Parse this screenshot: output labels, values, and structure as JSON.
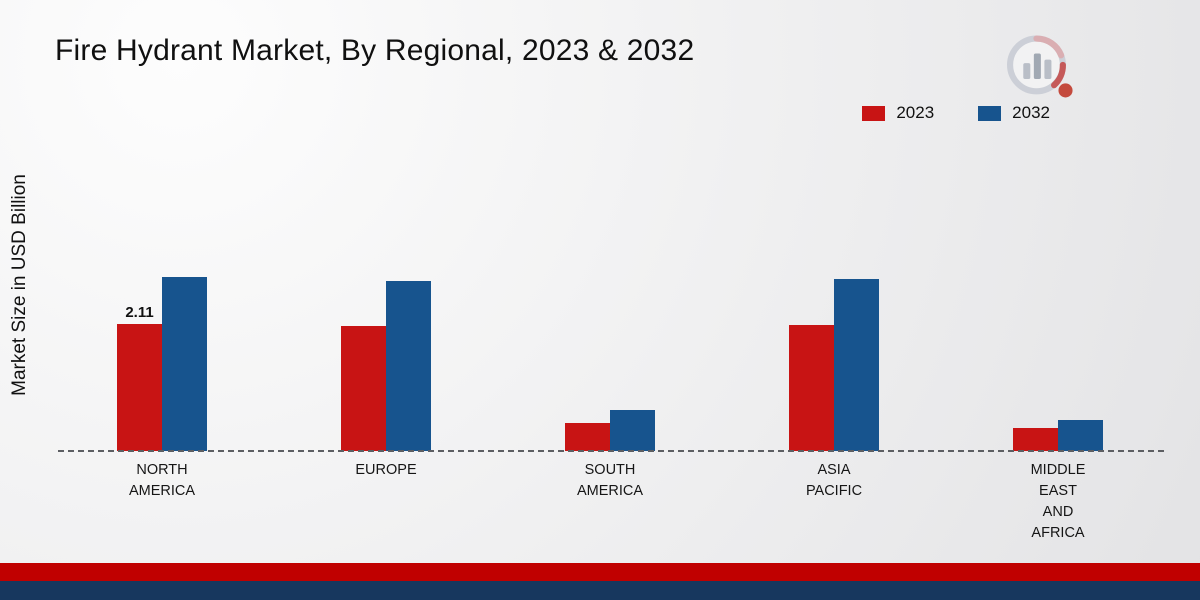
{
  "title": "Fire Hydrant Market, By Regional, 2023 & 2032",
  "y_axis_label": "Market Size in USD Billion",
  "chart_data": {
    "type": "bar",
    "title": "Fire Hydrant Market, By Regional, 2023 & 2032",
    "xlabel": "",
    "ylabel": "Market Size in USD Billion",
    "ylim": [
      0,
      5.5
    ],
    "grid": false,
    "legend_position": "top-right",
    "categories": [
      "NORTH AMERICA",
      "EUROPE",
      "SOUTH AMERICA",
      "ASIA PACIFIC",
      "MIDDLE EAST AND AFRICA"
    ],
    "category_label_lines": [
      [
        "NORTH",
        "AMERICA"
      ],
      [
        "EUROPE"
      ],
      [
        "SOUTH",
        "AMERICA"
      ],
      [
        "ASIA",
        "PACIFIC"
      ],
      [
        "MIDDLE",
        "EAST",
        "AND",
        "AFRICA"
      ]
    ],
    "series": [
      {
        "name": "2023",
        "color": "#c81414",
        "values": [
          2.11,
          2.08,
          0.46,
          2.1,
          0.38
        ]
      },
      {
        "name": "2032",
        "color": "#17548e",
        "values": [
          2.9,
          2.84,
          0.68,
          2.86,
          0.52
        ]
      }
    ],
    "annotations": [
      {
        "text": "2.11",
        "category_index": 0,
        "series_index": 0
      }
    ]
  },
  "footer": {
    "stripe_red": "#c00000",
    "stripe_blue": "#17375e"
  }
}
